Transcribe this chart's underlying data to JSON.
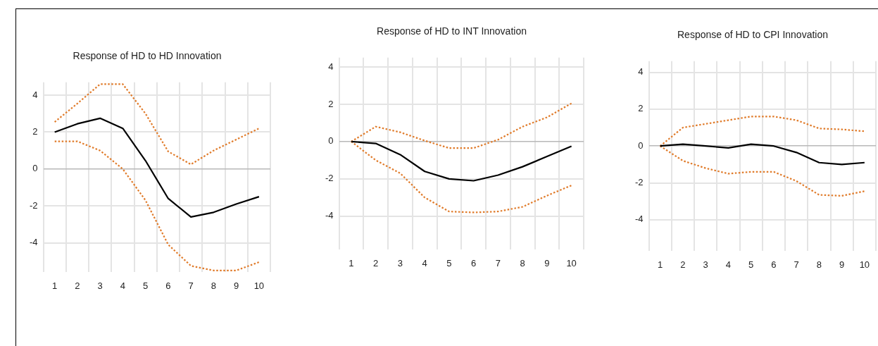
{
  "chart_data": [
    {
      "type": "line",
      "title": "Response of HD to HD Innovation",
      "categories": [
        "1",
        "2",
        "3",
        "4",
        "5",
        "6",
        "7",
        "8",
        "9",
        "10"
      ],
      "ylim": [
        -5.6,
        4.7
      ],
      "yticks": [
        -4,
        -2,
        0,
        2,
        4
      ],
      "grid": true,
      "legend": false,
      "marker": "none",
      "series": [
        {
          "color": "#000000",
          "line_style": "solid",
          "values": [
            2.0,
            2.45,
            2.75,
            2.2,
            0.45,
            -1.6,
            -2.6,
            -2.35,
            -1.9,
            -1.5
          ]
        },
        {
          "color": "#e07b2a",
          "line_style": "dotted",
          "values": [
            2.55,
            3.55,
            4.6,
            4.6,
            3.0,
            0.95,
            0.25,
            1.0,
            1.6,
            2.2
          ]
        },
        {
          "color": "#e07b2a",
          "line_style": "dotted",
          "values": [
            1.5,
            1.5,
            1.0,
            0.0,
            -1.7,
            -4.1,
            -5.25,
            -5.5,
            -5.5,
            -5.05
          ]
        }
      ]
    },
    {
      "type": "line",
      "title": "Response of HD to INT Innovation",
      "categories": [
        "1",
        "2",
        "3",
        "4",
        "5",
        "6",
        "7",
        "8",
        "9",
        "10"
      ],
      "ylim": [
        -5.8,
        4.5
      ],
      "yticks": [
        -4,
        -2,
        0,
        2,
        4
      ],
      "grid": true,
      "legend": false,
      "marker": "none",
      "series": [
        {
          "color": "#000000",
          "line_style": "solid",
          "values": [
            0,
            -0.1,
            -0.7,
            -1.6,
            -2.0,
            -2.1,
            -1.8,
            -1.35,
            -0.8,
            -0.25
          ]
        },
        {
          "color": "#e07b2a",
          "line_style": "dotted",
          "values": [
            0,
            0.8,
            0.5,
            0.05,
            -0.35,
            -0.35,
            0.1,
            0.8,
            1.3,
            2.05
          ]
        },
        {
          "color": "#e07b2a",
          "line_style": "dotted",
          "values": [
            0,
            -1.0,
            -1.7,
            -3.0,
            -3.75,
            -3.8,
            -3.75,
            -3.5,
            -2.9,
            -2.35
          ]
        }
      ]
    },
    {
      "type": "line",
      "title": "Response of HD to CPI Innovation",
      "categories": [
        "1",
        "2",
        "3",
        "4",
        "5",
        "6",
        "7",
        "8",
        "9",
        "10"
      ],
      "ylim": [
        -5.7,
        4.6
      ],
      "yticks": [
        -4,
        -2,
        0,
        2,
        4
      ],
      "grid": true,
      "legend": false,
      "marker": "none",
      "series": [
        {
          "color": "#000000",
          "line_style": "solid",
          "values": [
            0,
            0.1,
            0,
            -0.1,
            0.1,
            0,
            -0.35,
            -0.9,
            -1.0,
            -0.9
          ]
        },
        {
          "color": "#e07b2a",
          "line_style": "dotted",
          "values": [
            0,
            1.0,
            1.2,
            1.4,
            1.6,
            1.6,
            1.4,
            0.95,
            0.9,
            0.8
          ]
        },
        {
          "color": "#e07b2a",
          "line_style": "dotted",
          "values": [
            0,
            -0.8,
            -1.2,
            -1.5,
            -1.4,
            -1.4,
            -1.9,
            -2.65,
            -2.7,
            -2.45
          ]
        }
      ]
    }
  ]
}
